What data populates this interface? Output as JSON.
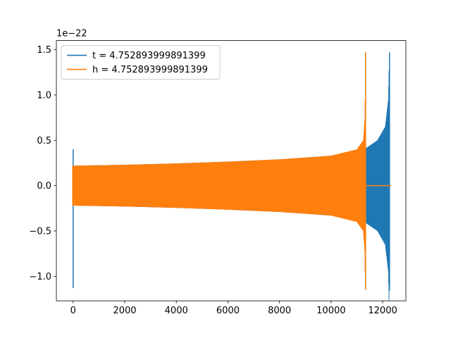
{
  "chart_data": {
    "type": "line",
    "title": "",
    "xlabel": "",
    "ylabel": "",
    "y_offset_label": "1e−22",
    "xlim": [
      -650,
      12900
    ],
    "ylim": [
      -1.27,
      1.6
    ],
    "x_ticks": [
      0,
      2000,
      4000,
      6000,
      8000,
      10000,
      12000
    ],
    "x_tick_labels": [
      "0",
      "2000",
      "4000",
      "6000",
      "8000",
      "10000",
      "12000"
    ],
    "y_ticks": [
      -1.0,
      -0.5,
      0.0,
      0.5,
      1.0,
      1.5
    ],
    "y_tick_labels": [
      "−1.0",
      "−0.5",
      "0.0",
      "0.5",
      "1.0",
      "1.5"
    ],
    "grid": false,
    "legend_position": "upper-left",
    "series": [
      {
        "name": "t = 4.752893999891399",
        "color": "#1f77b4",
        "x_start": 0,
        "x_merger": 12260,
        "x_end": 12300,
        "initial_spike": {
          "max": 0.4,
          "min": -1.13
        },
        "envelope": [
          {
            "x": 0,
            "amp": 0.22
          },
          {
            "x": 2000,
            "amp": 0.23
          },
          {
            "x": 4000,
            "amp": 0.245
          },
          {
            "x": 6000,
            "amp": 0.265
          },
          {
            "x": 8000,
            "amp": 0.29
          },
          {
            "x": 10000,
            "amp": 0.33
          },
          {
            "x": 11340,
            "amp": 0.41
          },
          {
            "x": 11800,
            "amp": 0.5
          },
          {
            "x": 12100,
            "amp": 0.65
          },
          {
            "x": 12220,
            "amp": 0.95
          },
          {
            "x": 12260,
            "amp": 1.47
          }
        ],
        "merger_min": -1.16
      },
      {
        "name": "h = 4.752893999891399",
        "color": "#ff7f0e",
        "x_start": 0,
        "x_merger": 11330,
        "x_end": 12300,
        "envelope": [
          {
            "x": 0,
            "amp": 0.22
          },
          {
            "x": 2000,
            "amp": 0.23
          },
          {
            "x": 4000,
            "amp": 0.245
          },
          {
            "x": 6000,
            "amp": 0.265
          },
          {
            "x": 8000,
            "amp": 0.29
          },
          {
            "x": 10000,
            "amp": 0.33
          },
          {
            "x": 11000,
            "amp": 0.4
          },
          {
            "x": 11250,
            "amp": 0.5
          },
          {
            "x": 11310,
            "amp": 0.75
          },
          {
            "x": 11330,
            "amp": 1.47
          }
        ],
        "merger_min": -1.15
      }
    ]
  }
}
